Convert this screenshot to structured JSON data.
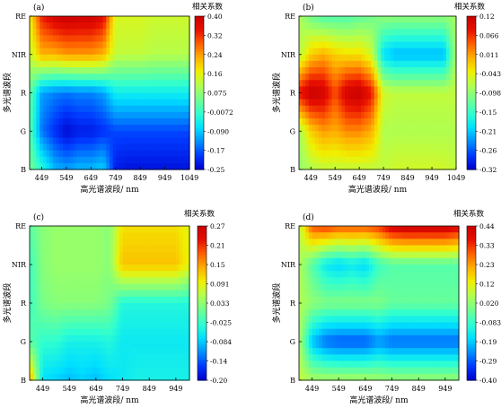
{
  "colormap": [
    "#0000cc",
    "#0038ff",
    "#0090ff",
    "#00e0ff",
    "#30ffd0",
    "#70ff90",
    "#b0ff50",
    "#f0f000",
    "#ffb000",
    "#ff6000",
    "#e81000",
    "#c80000"
  ],
  "chart_data": [
    {
      "id": "a",
      "type": "heatmap",
      "panel_label": "(a)",
      "xlabel": "高光谱波段/ nm",
      "ylabel": "多光谱波段",
      "colorbar_title": "相关系数",
      "x_ticks": [
        "449",
        "549",
        "649",
        "749",
        "849",
        "949",
        "1049"
      ],
      "y_ticks": [
        "B",
        "G",
        "R",
        "NIR",
        "RE"
      ],
      "x_range": [
        400,
        1049
      ],
      "colorbar_range": [
        -0.25,
        0.4
      ],
      "colorbar_ticks": [
        "0.40",
        "0.32",
        "0.24",
        "0.16",
        "0.075",
        "-0.0072",
        "-0.090",
        "-0.17",
        "-0.25"
      ],
      "x": [
        400,
        449,
        499,
        549,
        599,
        649,
        699,
        749,
        799,
        849,
        899,
        949,
        999,
        1049
      ],
      "rows": [
        {
          "band": "B",
          "values": [
            0.05,
            -0.02,
            -0.1,
            -0.12,
            -0.1,
            -0.1,
            -0.08,
            -0.22,
            -0.23,
            -0.23,
            -0.23,
            -0.23,
            -0.23,
            -0.23
          ]
        },
        {
          "band": "G",
          "values": [
            0.03,
            -0.15,
            -0.2,
            -0.24,
            -0.22,
            -0.22,
            -0.2,
            -0.18,
            -0.18,
            -0.18,
            -0.18,
            -0.18,
            -0.18,
            -0.18
          ]
        },
        {
          "band": "R",
          "values": [
            0.04,
            -0.12,
            -0.14,
            -0.15,
            -0.14,
            -0.14,
            -0.12,
            -0.05,
            -0.05,
            -0.05,
            -0.05,
            -0.05,
            -0.05,
            -0.05
          ]
        },
        {
          "band": "NIR",
          "values": [
            0.12,
            0.22,
            0.22,
            0.24,
            0.24,
            0.24,
            0.22,
            0.12,
            0.12,
            0.12,
            0.11,
            0.11,
            0.11,
            0.11
          ]
        },
        {
          "band": "RE",
          "values": [
            0.16,
            0.33,
            0.38,
            0.4,
            0.39,
            0.39,
            0.36,
            0.14,
            0.14,
            0.14,
            0.13,
            0.13,
            0.13,
            0.13
          ]
        }
      ]
    },
    {
      "id": "b",
      "type": "heatmap",
      "panel_label": "(b)",
      "xlabel": "高光谱波段/ nm",
      "ylabel": "多光谱波段",
      "colorbar_title": "相关系数",
      "x_ticks": [
        "449",
        "549",
        "649",
        "749",
        "849",
        "949",
        "1049"
      ],
      "y_ticks": [
        "B",
        "G",
        "R",
        "NIR",
        "RE"
      ],
      "x_range": [
        400,
        1049
      ],
      "colorbar_range": [
        -0.32,
        0.12
      ],
      "colorbar_ticks": [
        "0.12",
        "0.066",
        "0.011",
        "-0.043",
        "-0.098",
        "-0.15",
        "-0.21",
        "-0.26",
        "-0.32"
      ],
      "x": [
        400,
        449,
        499,
        549,
        599,
        649,
        699,
        749,
        799,
        849,
        899,
        949,
        999,
        1049
      ],
      "rows": [
        {
          "band": "B",
          "values": [
            -0.1,
            -0.08,
            -0.07,
            -0.07,
            -0.07,
            -0.07,
            -0.07,
            -0.07,
            -0.06,
            -0.06,
            -0.06,
            -0.06,
            -0.06,
            -0.07
          ]
        },
        {
          "band": "G",
          "values": [
            -0.09,
            -0.02,
            0.01,
            0.0,
            0.02,
            0.02,
            0.0,
            -0.08,
            -0.08,
            -0.08,
            -0.08,
            -0.08,
            -0.08,
            -0.08
          ]
        },
        {
          "band": "R",
          "values": [
            0.08,
            0.12,
            0.11,
            0.05,
            0.11,
            0.12,
            0.08,
            -0.06,
            -0.07,
            -0.07,
            -0.07,
            -0.07,
            -0.07,
            -0.07
          ]
        },
        {
          "band": "NIR",
          "values": [
            -0.08,
            -0.02,
            0.0,
            -0.02,
            -0.03,
            -0.03,
            -0.06,
            -0.2,
            -0.22,
            -0.22,
            -0.22,
            -0.22,
            -0.22,
            -0.08
          ]
        },
        {
          "band": "RE",
          "values": [
            -0.08,
            -0.12,
            -0.14,
            -0.14,
            -0.14,
            -0.13,
            -0.12,
            -0.1,
            -0.1,
            -0.1,
            -0.1,
            -0.1,
            -0.1,
            -0.09
          ]
        }
      ]
    },
    {
      "id": "c",
      "type": "heatmap",
      "panel_label": "(c)",
      "xlabel": "高光谱波段/ nm",
      "ylabel": "多光谱波段",
      "colorbar_title": "相关系数",
      "x_ticks": [
        "449",
        "549",
        "649",
        "749",
        "849",
        "949"
      ],
      "y_ticks": [
        "B",
        "G",
        "R",
        "NIR",
        "RE"
      ],
      "x_range": [
        400,
        1000
      ],
      "colorbar_range": [
        -0.2,
        0.27
      ],
      "colorbar_ticks": [
        "0.27",
        "0.21",
        "0.15",
        "0.091",
        "0.033",
        "-0.025",
        "-0.084",
        "-0.14",
        "-0.20"
      ],
      "x": [
        400,
        449,
        499,
        549,
        599,
        649,
        699,
        749,
        799,
        849,
        899,
        949,
        1000
      ],
      "rows": [
        {
          "band": "B",
          "values": [
            0.15,
            -0.07,
            -0.08,
            -0.09,
            -0.08,
            -0.09,
            -0.07,
            -0.06,
            -0.05,
            -0.05,
            -0.05,
            -0.05,
            -0.05
          ]
        },
        {
          "band": "G",
          "values": [
            0.0,
            -0.03,
            -0.03,
            -0.05,
            -0.05,
            -0.05,
            -0.04,
            -0.06,
            -0.06,
            -0.06,
            -0.06,
            -0.06,
            -0.06
          ]
        },
        {
          "band": "R",
          "values": [
            -0.02,
            0.02,
            0.03,
            0.03,
            0.03,
            0.03,
            0.02,
            -0.04,
            -0.04,
            -0.04,
            -0.04,
            -0.04,
            -0.04
          ]
        },
        {
          "band": "NIR",
          "values": [
            -0.02,
            0.03,
            0.04,
            0.04,
            0.04,
            0.04,
            0.03,
            0.13,
            0.13,
            0.13,
            0.13,
            0.13,
            0.09
          ]
        },
        {
          "band": "RE",
          "values": [
            0.0,
            0.03,
            0.04,
            0.04,
            0.04,
            0.04,
            0.03,
            0.11,
            0.11,
            0.11,
            0.11,
            0.11,
            0.09
          ]
        }
      ]
    },
    {
      "id": "d",
      "type": "heatmap",
      "panel_label": "(d)",
      "xlabel": "高光谱波段/ nm",
      "ylabel": "多光谱波段",
      "colorbar_title": "相关系数",
      "x_ticks": [
        "449",
        "549",
        "649",
        "749",
        "849",
        "949"
      ],
      "y_ticks": [
        "B",
        "G",
        "R",
        "NIR",
        "RE"
      ],
      "x_range": [
        400,
        1000
      ],
      "colorbar_range": [
        -0.4,
        0.44
      ],
      "colorbar_ticks": [
        "0.44",
        "0.33",
        "0.23",
        "0.12",
        "0.020",
        "-0.083",
        "-0.19",
        "-0.29",
        "-0.40"
      ],
      "x": [
        400,
        449,
        499,
        549,
        599,
        649,
        699,
        749,
        799,
        849,
        899,
        949,
        1000
      ],
      "rows": [
        {
          "band": "B",
          "values": [
            0.08,
            0.05,
            0.05,
            0.05,
            0.05,
            0.05,
            0.04,
            0.03,
            0.03,
            0.03,
            0.03,
            0.03,
            0.03
          ]
        },
        {
          "band": "G",
          "values": [
            0.06,
            -0.2,
            -0.28,
            -0.3,
            -0.3,
            -0.3,
            -0.25,
            -0.28,
            -0.28,
            -0.28,
            -0.28,
            -0.28,
            -0.28
          ]
        },
        {
          "band": "R",
          "values": [
            0.06,
            0.02,
            0.0,
            0.0,
            0.0,
            0.0,
            0.0,
            -0.03,
            -0.03,
            -0.03,
            -0.03,
            -0.03,
            -0.03
          ]
        },
        {
          "band": "NIR",
          "values": [
            0.06,
            -0.05,
            -0.15,
            -0.18,
            -0.15,
            -0.18,
            -0.08,
            -0.05,
            -0.05,
            -0.05,
            -0.05,
            -0.05,
            -0.05
          ]
        },
        {
          "band": "RE",
          "values": [
            0.06,
            0.3,
            0.33,
            0.3,
            0.3,
            0.3,
            0.33,
            0.42,
            0.44,
            0.44,
            0.44,
            0.44,
            0.4
          ]
        }
      ]
    }
  ]
}
